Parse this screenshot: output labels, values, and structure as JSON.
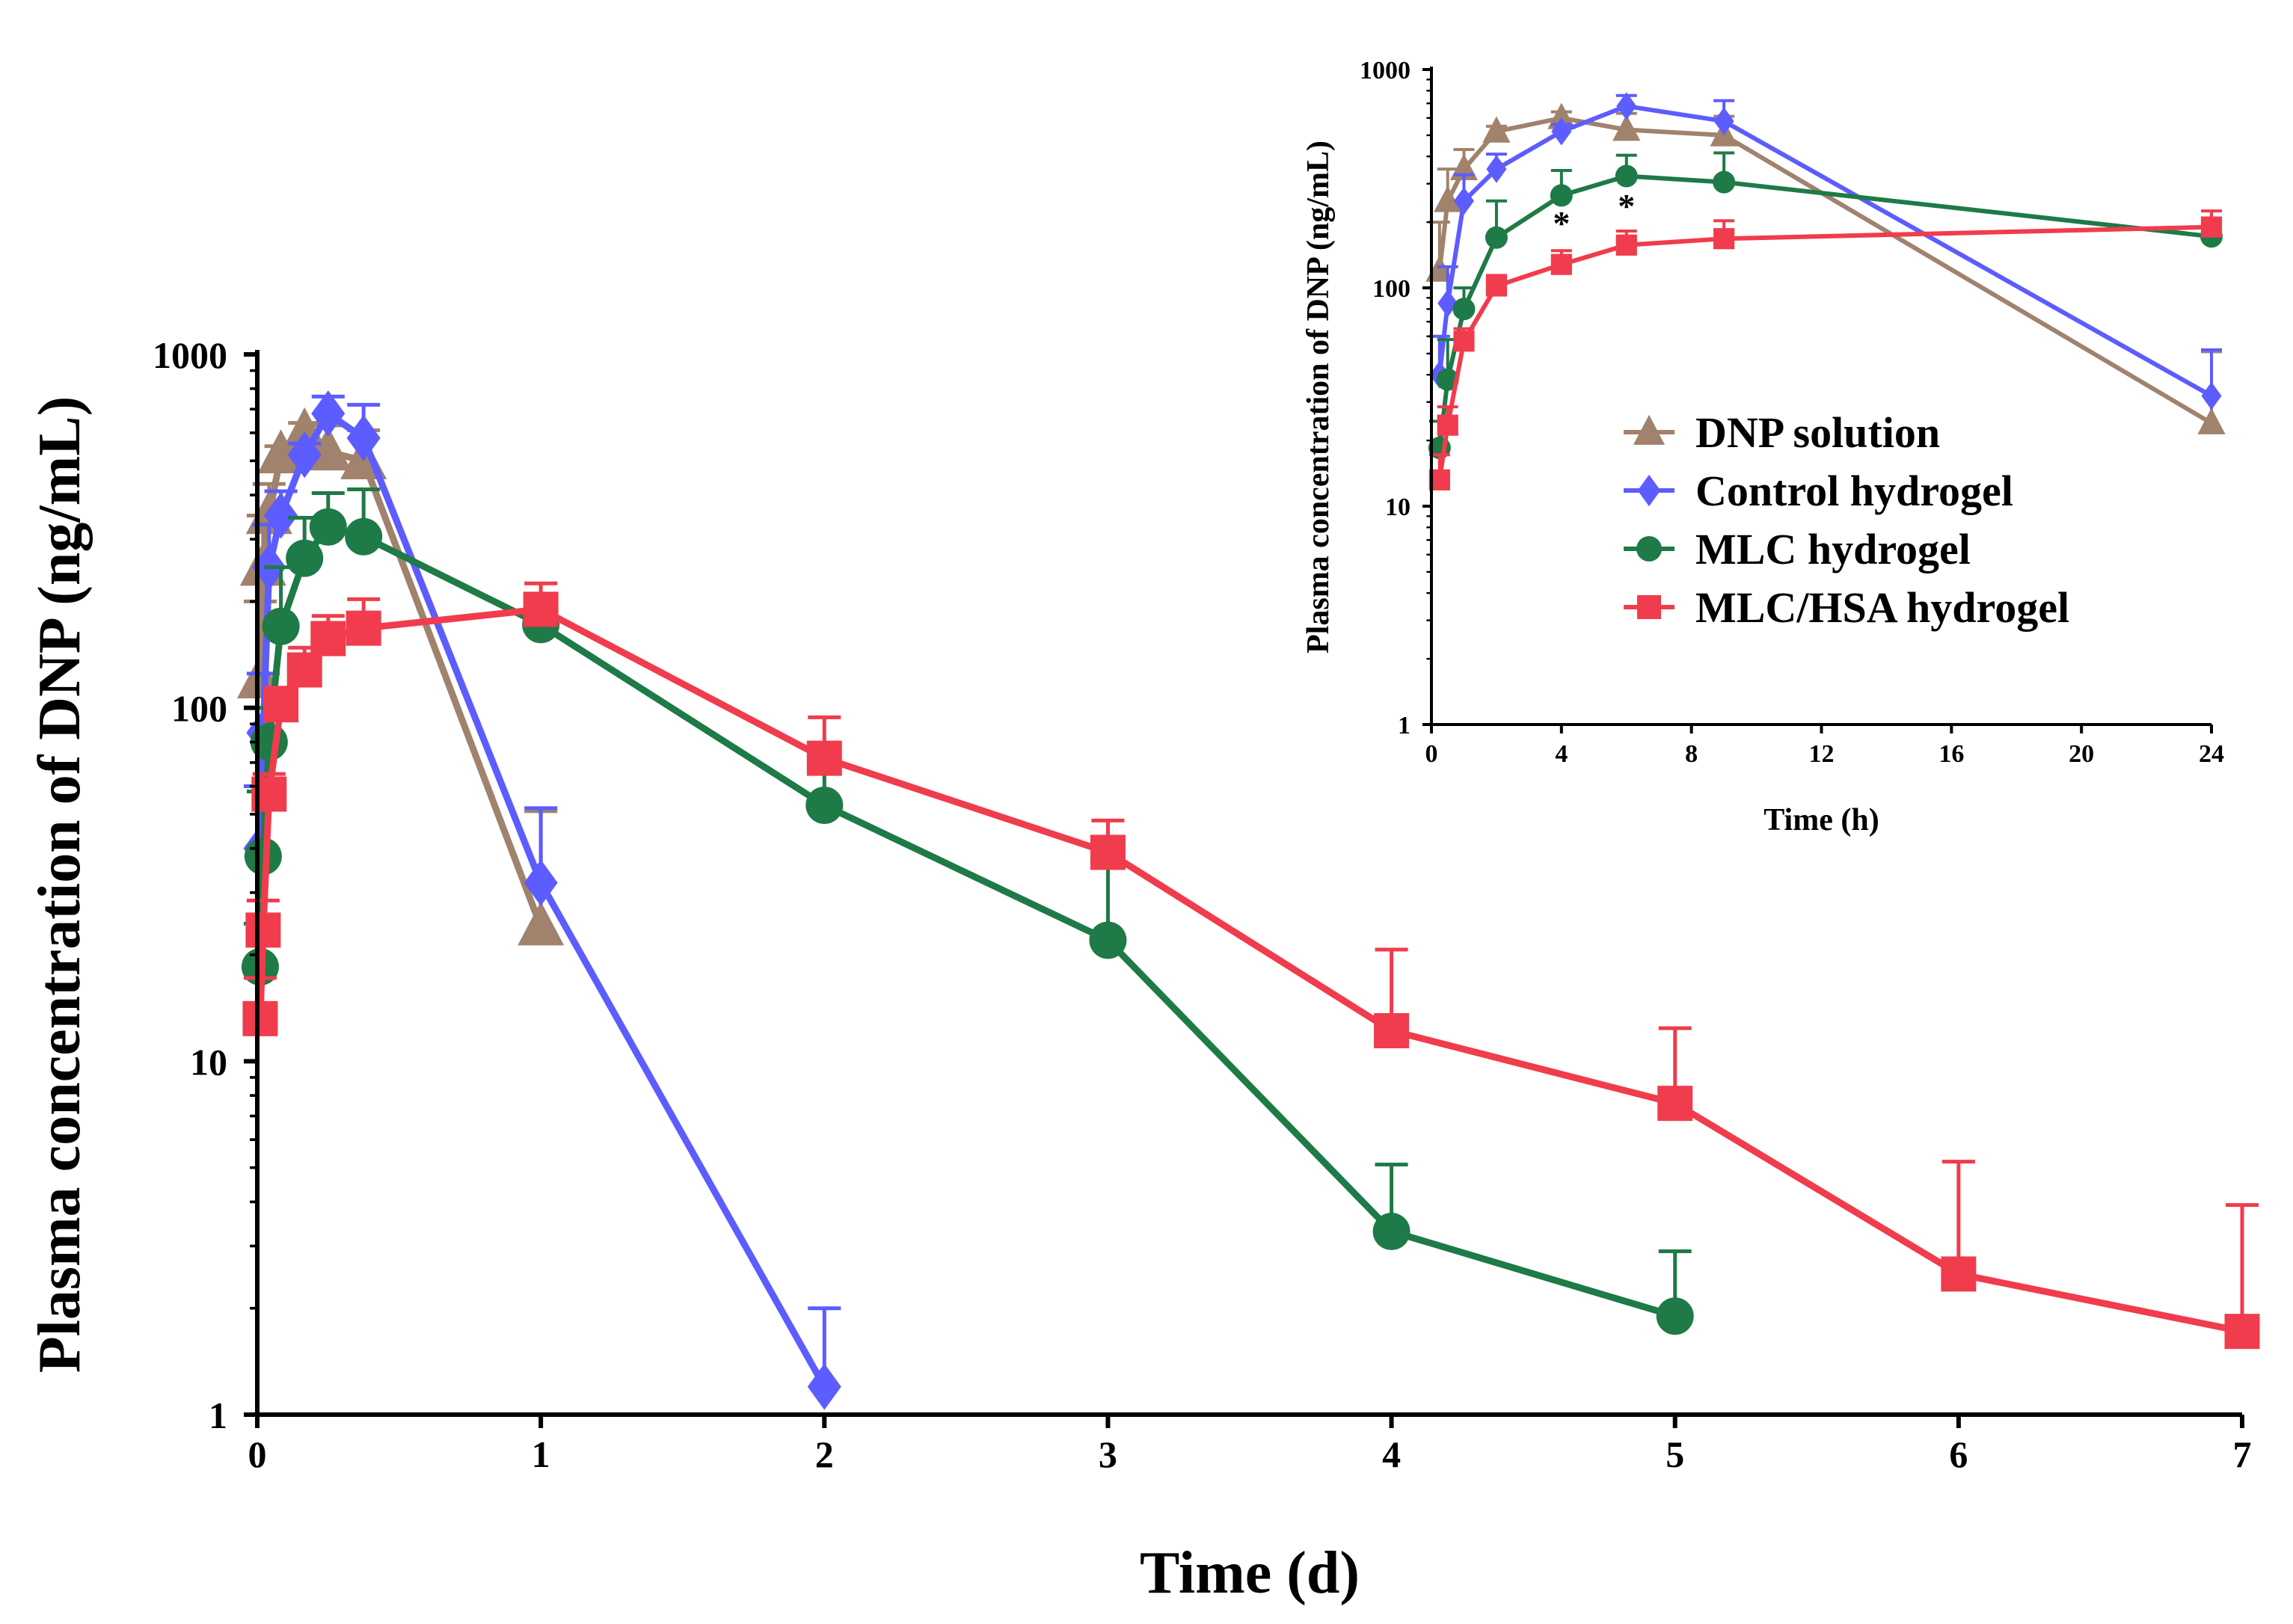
{
  "chart_data": [
    {
      "id": "main",
      "type": "line",
      "xscale": "linear",
      "yscale": "log",
      "xlabel": "Time (d)",
      "ylabel": "Plasma concentration of DNP (ng/mL)",
      "xlim": [
        0,
        7
      ],
      "ylim": [
        1,
        1000
      ],
      "xticks": [
        "0",
        "1",
        "2",
        "3",
        "4",
        "5",
        "6",
        "7"
      ],
      "yticks": [
        "1",
        "10",
        "100",
        "1000"
      ],
      "series": [
        {
          "name": "DNP solution",
          "color": "#a0826d",
          "marker": "triangle",
          "points": [
            {
              "x": 0.0104,
              "y": 120,
              "err": 80
            },
            {
              "x": 0.0208,
              "y": 250,
              "err": 100
            },
            {
              "x": 0.0417,
              "y": 350,
              "err": 80
            },
            {
              "x": 0.0833,
              "y": 520,
              "err": 30
            },
            {
              "x": 0.1667,
              "y": 600,
              "err": 40
            },
            {
              "x": 0.25,
              "y": 530,
              "err": 100
            },
            {
              "x": 0.375,
              "y": 500,
              "err": 110
            },
            {
              "x": 1.0,
              "y": 24,
              "err": 27
            }
          ]
        },
        {
          "name": "Control hydrogel",
          "color": "#5c5cff",
          "marker": "diamond",
          "points": [
            {
              "x": 0.0104,
              "y": 40,
              "err": 20
            },
            {
              "x": 0.0208,
              "y": 85,
              "err": 40
            },
            {
              "x": 0.0417,
              "y": 250,
              "err": 80
            },
            {
              "x": 0.0833,
              "y": 350,
              "err": 60
            },
            {
              "x": 0.1667,
              "y": 520,
              "err": 40
            },
            {
              "x": 0.25,
              "y": 680,
              "err": 80
            },
            {
              "x": 0.375,
              "y": 580,
              "err": 140
            },
            {
              "x": 1.0,
              "y": 32,
              "err": 20
            },
            {
              "x": 2.0,
              "y": 1.2,
              "err": 0.8
            }
          ]
        },
        {
          "name": "MLC hydrogel",
          "color": "#1e7a46",
          "marker": "circle",
          "points": [
            {
              "x": 0.0104,
              "y": 18.5,
              "err": 6
            },
            {
              "x": 0.0208,
              "y": 38,
              "err": 20
            },
            {
              "x": 0.0417,
              "y": 80,
              "err": 20
            },
            {
              "x": 0.0833,
              "y": 170,
              "err": 80
            },
            {
              "x": 0.1667,
              "y": 265,
              "err": 80
            },
            {
              "x": 0.25,
              "y": 325,
              "err": 80
            },
            {
              "x": 0.375,
              "y": 305,
              "err": 110
            },
            {
              "x": 1.0,
              "y": 172,
              "err": 10
            },
            {
              "x": 2.0,
              "y": 53,
              "err": 26
            },
            {
              "x": 3.0,
              "y": 22,
              "err": 20
            },
            {
              "x": 4.0,
              "y": 3.3,
              "err": 1.8
            },
            {
              "x": 5.0,
              "y": 1.9,
              "err": 1.0
            }
          ]
        },
        {
          "name": "MLC/HSA hydrogel",
          "color": "#f03c4c",
          "marker": "square",
          "points": [
            {
              "x": 0.0104,
              "y": 13.2,
              "err": 4
            },
            {
              "x": 0.0208,
              "y": 23.5,
              "err": 5
            },
            {
              "x": 0.0417,
              "y": 57,
              "err": 8
            },
            {
              "x": 0.0833,
              "y": 102,
              "err": 12
            },
            {
              "x": 0.1667,
              "y": 128,
              "err": 20
            },
            {
              "x": 0.25,
              "y": 157,
              "err": 25
            },
            {
              "x": 0.375,
              "y": 168,
              "err": 35
            },
            {
              "x": 1.0,
              "y": 190,
              "err": 35
            },
            {
              "x": 2.0,
              "y": 72,
              "err": 22
            },
            {
              "x": 3.0,
              "y": 39,
              "err": 9
            },
            {
              "x": 4.0,
              "y": 12.2,
              "err": 8.5
            },
            {
              "x": 5.0,
              "y": 7.6,
              "err": 4.8
            },
            {
              "x": 6.0,
              "y": 2.5,
              "err": 2.7
            },
            {
              "x": 7.0,
              "y": 1.72,
              "err": 2.2
            }
          ]
        }
      ]
    },
    {
      "id": "inset",
      "type": "line",
      "xscale": "linear",
      "yscale": "log",
      "xlabel": "Time (h)",
      "ylabel": "Plasma concentration of  DNP (ng/mL)",
      "xlim": [
        0,
        24
      ],
      "ylim": [
        1,
        1000
      ],
      "xticks": [
        "0",
        "4",
        "8",
        "12",
        "16",
        "20",
        "24"
      ],
      "yticks": [
        "1",
        "10",
        "100",
        "1000"
      ],
      "legend": {
        "position": "center-right",
        "entries": [
          "DNP solution",
          "Control hydrogel",
          "MLC hydrogel",
          "MLC/HSA hydrogel"
        ]
      },
      "annotations": [
        {
          "text": "*",
          "x": 4,
          "y": 175
        },
        {
          "text": "*",
          "x": 6,
          "y": 210
        }
      ],
      "series": [
        {
          "name": "DNP solution",
          "color": "#a0826d",
          "marker": "triangle",
          "points": [
            {
              "x": 0.25,
              "y": 120,
              "err": 80
            },
            {
              "x": 0.5,
              "y": 250,
              "err": 100
            },
            {
              "x": 1,
              "y": 350,
              "err": 80
            },
            {
              "x": 2,
              "y": 520,
              "err": 30
            },
            {
              "x": 4,
              "y": 600,
              "err": 40
            },
            {
              "x": 6,
              "y": 530,
              "err": 100
            },
            {
              "x": 9,
              "y": 500,
              "err": 110
            },
            {
              "x": 24,
              "y": 24,
              "err": 27
            }
          ]
        },
        {
          "name": "Control hydrogel",
          "color": "#5c5cff",
          "marker": "diamond",
          "points": [
            {
              "x": 0.25,
              "y": 40,
              "err": 20
            },
            {
              "x": 0.5,
              "y": 85,
              "err": 40
            },
            {
              "x": 1,
              "y": 250,
              "err": 80
            },
            {
              "x": 2,
              "y": 350,
              "err": 60
            },
            {
              "x": 4,
              "y": 520,
              "err": 40
            },
            {
              "x": 6,
              "y": 680,
              "err": 80
            },
            {
              "x": 9,
              "y": 580,
              "err": 140
            },
            {
              "x": 24,
              "y": 32,
              "err": 20
            }
          ]
        },
        {
          "name": "MLC hydrogel",
          "color": "#1e7a46",
          "marker": "circle",
          "points": [
            {
              "x": 0.25,
              "y": 18.5,
              "err": 6
            },
            {
              "x": 0.5,
              "y": 38,
              "err": 20
            },
            {
              "x": 1,
              "y": 80,
              "err": 20
            },
            {
              "x": 2,
              "y": 170,
              "err": 80
            },
            {
              "x": 4,
              "y": 265,
              "err": 80
            },
            {
              "x": 6,
              "y": 325,
              "err": 80
            },
            {
              "x": 9,
              "y": 305,
              "err": 110
            },
            {
              "x": 24,
              "y": 172,
              "err": 10
            }
          ]
        },
        {
          "name": "MLC/HSA hydrogel",
          "color": "#f03c4c",
          "marker": "square",
          "points": [
            {
              "x": 0.25,
              "y": 13.2,
              "err": 4
            },
            {
              "x": 0.5,
              "y": 23.5,
              "err": 5
            },
            {
              "x": 1,
              "y": 57,
              "err": 8
            },
            {
              "x": 2,
              "y": 102,
              "err": 12
            },
            {
              "x": 4,
              "y": 128,
              "err": 20
            },
            {
              "x": 6,
              "y": 157,
              "err": 25
            },
            {
              "x": 9,
              "y": 168,
              "err": 35
            },
            {
              "x": 24,
              "y": 190,
              "err": 35
            }
          ]
        }
      ]
    }
  ]
}
